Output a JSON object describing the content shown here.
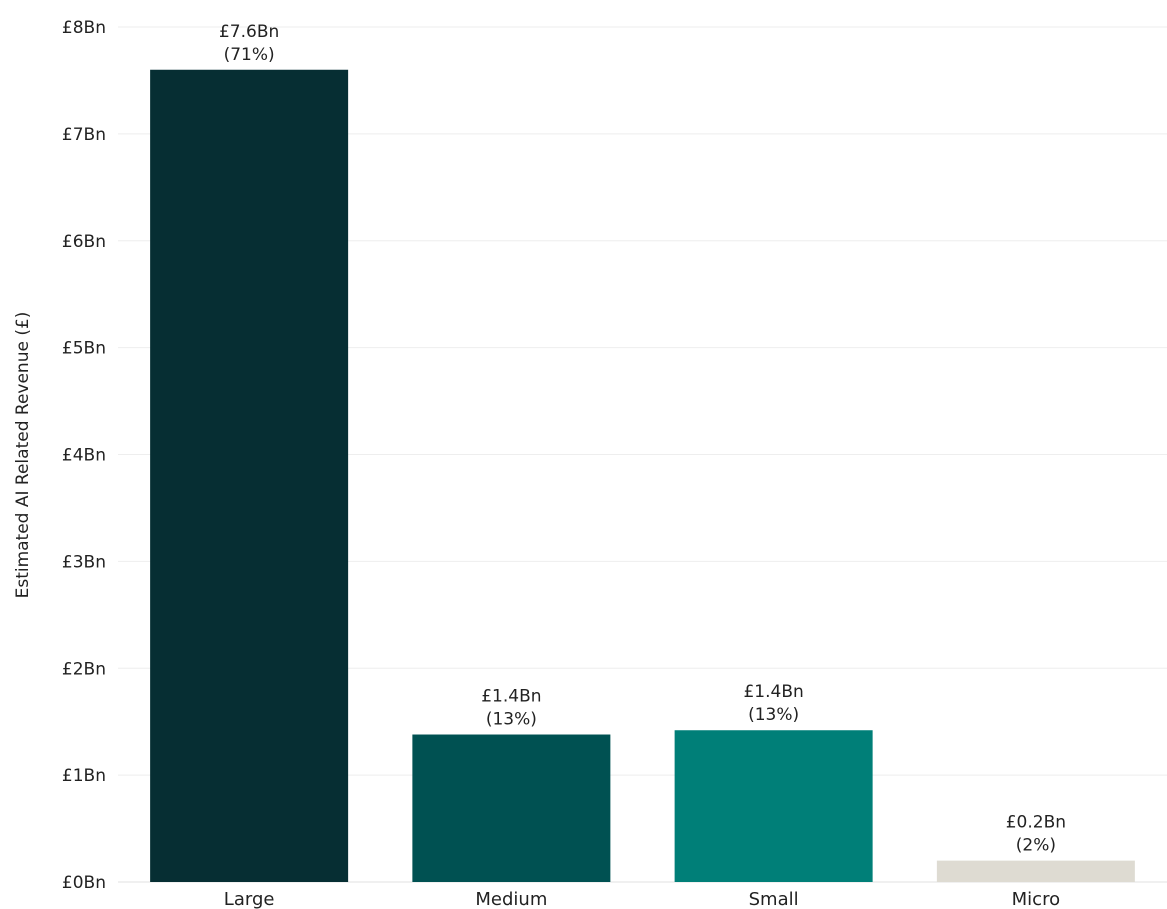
{
  "chart_data": {
    "type": "bar",
    "title": "",
    "xlabel": "",
    "ylabel": "Estimated AI Related Revenue (£)",
    "ylim": [
      0,
      8
    ],
    "y_ticks": [
      0,
      1,
      2,
      3,
      4,
      5,
      6,
      7,
      8
    ],
    "y_tick_labels": [
      "£0Bn",
      "£1Bn",
      "£2Bn",
      "£3Bn",
      "£4Bn",
      "£5Bn",
      "£6Bn",
      "£7Bn",
      "£8Bn"
    ],
    "grid": true,
    "categories": [
      "Large",
      "Medium",
      "Small",
      "Micro"
    ],
    "values": [
      7.6,
      1.38,
      1.42,
      0.2
    ],
    "value_labels": [
      "£7.6Bn",
      "£1.4Bn",
      "£1.4Bn",
      "£0.2Bn"
    ],
    "percent_labels": [
      "(71%)",
      "(13%)",
      "(13%)",
      "(2%)"
    ],
    "colors": [
      "#062e33",
      "#005152",
      "#007f78",
      "#dedbd2"
    ]
  }
}
